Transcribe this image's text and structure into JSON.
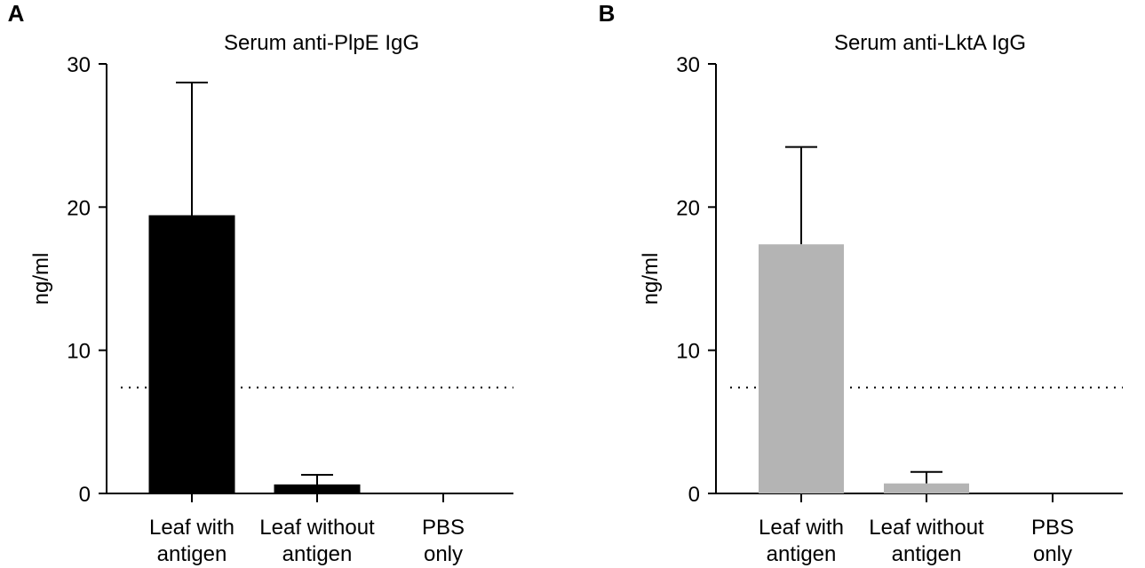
{
  "chart_data": [
    {
      "panel": "A",
      "type": "bar",
      "title": "Serum anti-PlpE IgG",
      "ylabel": "ng/ml",
      "ylim": [
        0,
        30
      ],
      "yticks": [
        0,
        10,
        20,
        30
      ],
      "categories": [
        [
          "Leaf with",
          "antigen"
        ],
        [
          "Leaf without",
          "antigen"
        ],
        [
          "PBS",
          "only"
        ]
      ],
      "values": [
        19.4,
        0.6,
        0
      ],
      "errors": [
        9.3,
        0.7,
        0
      ],
      "threshold": 7.4,
      "bar_color": "#000000"
    },
    {
      "panel": "B",
      "type": "bar",
      "title": "Serum anti-LktA IgG",
      "ylabel": "ng/ml",
      "ylim": [
        0,
        30
      ],
      "yticks": [
        0,
        10,
        20,
        30
      ],
      "categories": [
        [
          "Leaf with",
          "antigen"
        ],
        [
          "Leaf without",
          "antigen"
        ],
        [
          "PBS",
          "only"
        ]
      ],
      "values": [
        17.4,
        0.7,
        0
      ],
      "errors": [
        6.8,
        0.8,
        0
      ],
      "threshold": 7.4,
      "bar_color": "#b4b4b4"
    }
  ]
}
